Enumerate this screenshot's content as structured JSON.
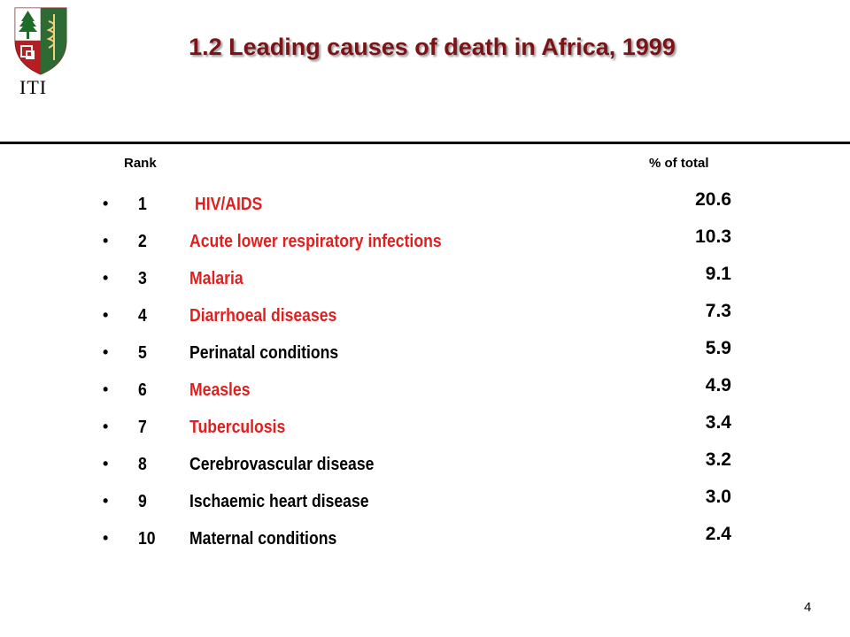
{
  "header": {
    "logo_text": "ITI",
    "title": "1.2 Leading causes of death in Africa, 1999"
  },
  "table": {
    "col_rank": "Rank",
    "col_pct": "% of total",
    "rows": [
      {
        "bullet": "•",
        "rank": "1",
        "cause": "HIV/AIDS",
        "pct": "20.6"
      },
      {
        "bullet": "•",
        "rank": "2",
        "cause": "Acute lower respiratory infections",
        "pct": "10.3"
      },
      {
        "bullet": "•",
        "rank": "3",
        "cause": "Malaria",
        "pct": "9.1"
      },
      {
        "bullet": "•",
        "rank": "4",
        "cause": "Diarrhoeal diseases",
        "pct": "7.3"
      },
      {
        "bullet": "•",
        "rank": "5",
        "cause": "Perinatal conditions",
        "pct": "5.9"
      },
      {
        "bullet": "•",
        "rank": "6",
        "cause": "Measles",
        "pct": "4.9"
      },
      {
        "bullet": "•",
        "rank": "7",
        "cause": "Tuberculosis",
        "pct": "3.4"
      },
      {
        "bullet": "•",
        "rank": "8",
        "cause": "Cerebrovascular disease",
        "pct": "3.2"
      },
      {
        "bullet": "•",
        "rank": "9",
        "cause": "Ischaemic heart disease",
        "pct": "3.0"
      },
      {
        "bullet": "•",
        "rank": "10",
        "cause": "Maternal conditions",
        "pct": "2.4"
      }
    ]
  },
  "colors": {
    "title": "#7b1418",
    "highlight_cause": "#e0201f",
    "normal_cause": "#000000"
  },
  "footer": {
    "page_number": "4"
  }
}
